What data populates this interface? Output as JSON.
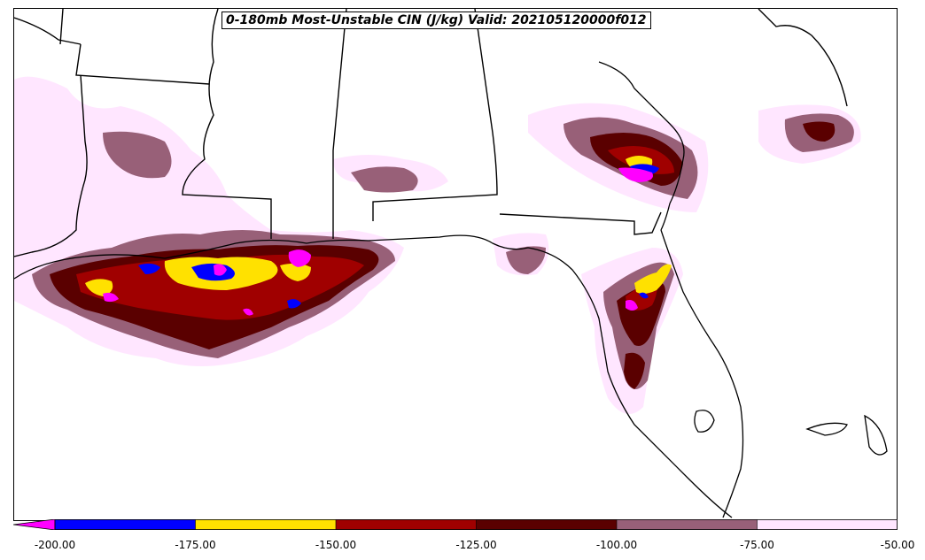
{
  "title": "0-180mb Most-Unstable CIN (J/kg) Valid: 202105120000f012",
  "colorbar": {
    "extend_min_color": "#ff00ff",
    "bins": [
      {
        "from": -200,
        "to": -175,
        "color": "#0000ff"
      },
      {
        "from": -175,
        "to": -150,
        "color": "#ffe100"
      },
      {
        "from": -150,
        "to": -125,
        "color": "#a00000"
      },
      {
        "from": -125,
        "to": -100,
        "color": "#5a0000"
      },
      {
        "from": -100,
        "to": -75,
        "color": "#986078"
      },
      {
        "from": -75,
        "to": -50,
        "color": "#ffe6ff"
      }
    ],
    "tick_labels": [
      "-200.00",
      "-175.00",
      "-150.00",
      "-125.00",
      "-100.00",
      "-75.00",
      "-50.00"
    ]
  }
}
